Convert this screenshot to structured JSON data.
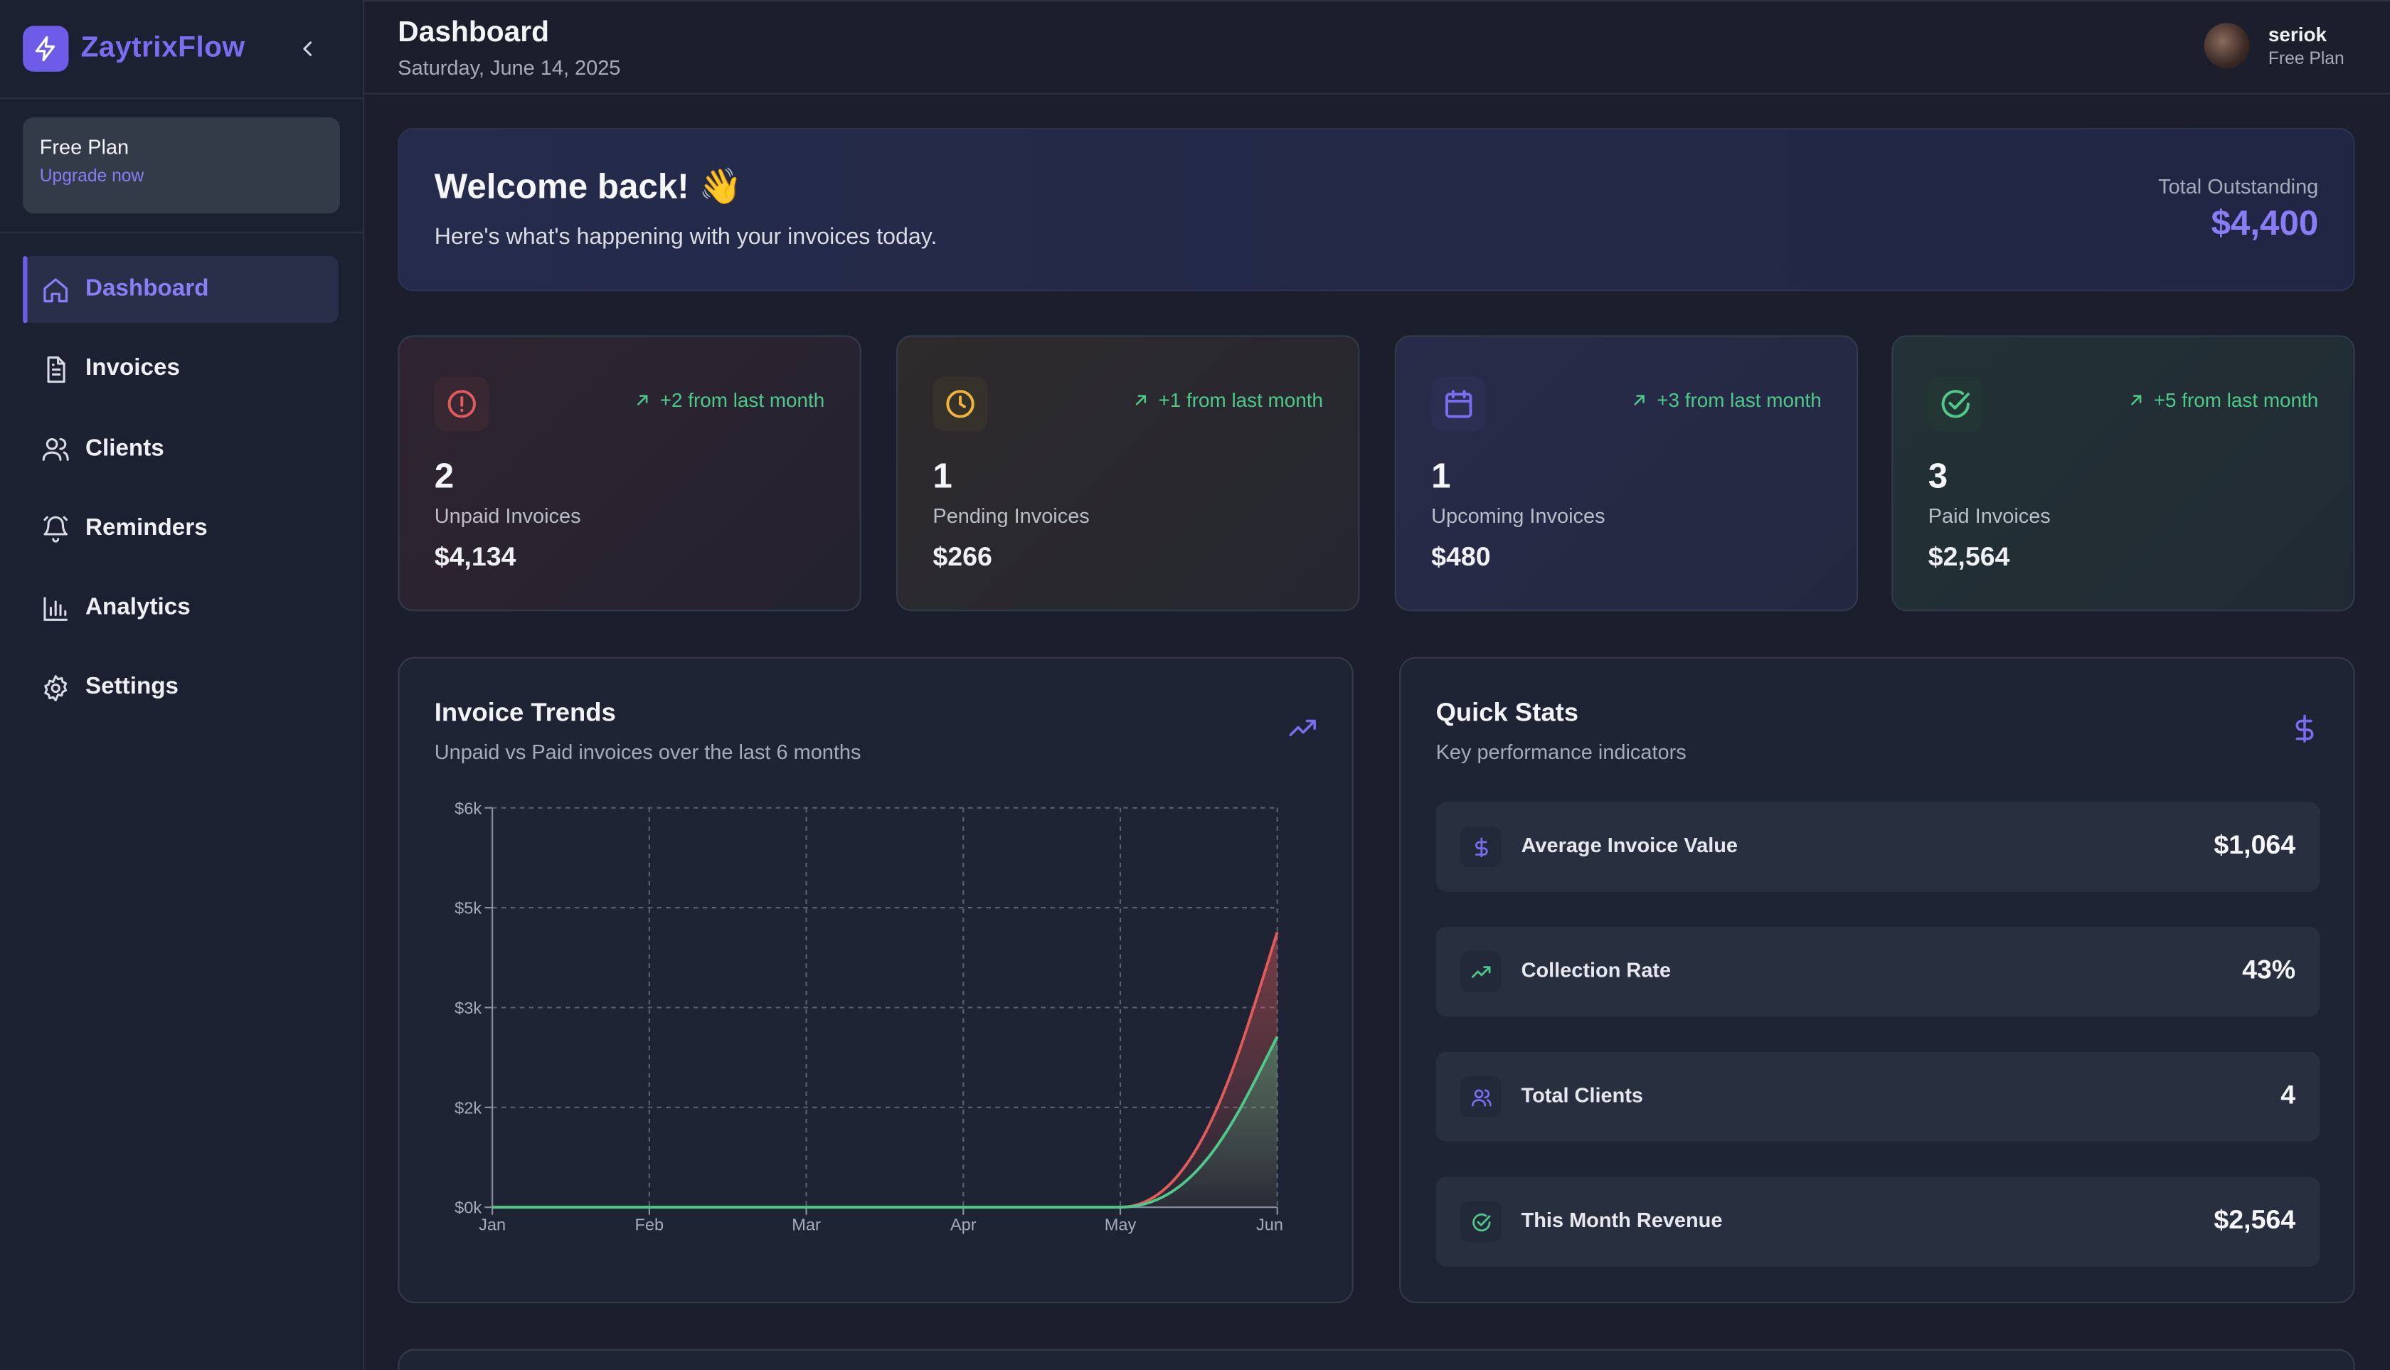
{
  "brand": {
    "name": "ZaytrixFlow"
  },
  "plan": {
    "title": "Free Plan",
    "link": "Upgrade now"
  },
  "nav": [
    {
      "label": "Dashboard",
      "icon": "home-icon",
      "active": true
    },
    {
      "label": "Invoices",
      "icon": "file-text-icon"
    },
    {
      "label": "Clients",
      "icon": "users-icon"
    },
    {
      "label": "Reminders",
      "icon": "bell-icon"
    },
    {
      "label": "Analytics",
      "icon": "bar-chart-icon"
    },
    {
      "label": "Settings",
      "icon": "gear-icon"
    }
  ],
  "header": {
    "title": "Dashboard",
    "date": "Saturday, June 14, 2025"
  },
  "user": {
    "name": "seriok",
    "plan": "Free Plan"
  },
  "welcome": {
    "title": "Welcome back! 👋",
    "subtitle": "Here's what's happening with your invoices today.",
    "outstanding_label": "Total Outstanding",
    "outstanding_value": "$4,400"
  },
  "stats": [
    {
      "count": "2",
      "label": "Unpaid Invoices",
      "amount": "$4,134",
      "trend": "+2 from last month",
      "icon": "alert-circle-icon",
      "color": "#e25b5b"
    },
    {
      "count": "1",
      "label": "Pending Invoices",
      "amount": "$266",
      "trend": "+1 from last month",
      "icon": "clock-icon",
      "color": "#f0b43c"
    },
    {
      "count": "1",
      "label": "Upcoming Invoices",
      "amount": "$480",
      "trend": "+3 from last month",
      "icon": "calendar-icon",
      "color": "#7b6cf0"
    },
    {
      "count": "3",
      "label": "Paid Invoices",
      "amount": "$2,564",
      "trend": "+5 from last month",
      "icon": "check-circle-icon",
      "color": "#4ec98a"
    }
  ],
  "trends": {
    "title": "Invoice Trends",
    "subtitle": "Unpaid vs Paid invoices over the last 6 months"
  },
  "chart_data": {
    "type": "area",
    "categories": [
      "Jan",
      "Feb",
      "Mar",
      "Apr",
      "May",
      "Jun"
    ],
    "series": [
      {
        "values": [
          0,
          0,
          0,
          0,
          0,
          4134
        ],
        "color": "#e25b5b"
      },
      {
        "values": [
          0,
          0,
          0,
          0,
          0,
          2564
        ],
        "color": "#4ec98a"
      }
    ],
    "yticks": [
      "$0k",
      "$2k",
      "$3k",
      "$5k",
      "$6k"
    ],
    "ytick_values": [
      0,
      1500,
      3000,
      4500,
      6000
    ],
    "ylim": [
      0,
      6000
    ],
    "grid": true
  },
  "quick_stats": {
    "title": "Quick Stats",
    "subtitle": "Key performance indicators",
    "items": [
      {
        "label": "Average Invoice Value",
        "value": "$1,064",
        "icon": "dollar-icon",
        "color": "#7b6cf0"
      },
      {
        "label": "Collection Rate",
        "value": "43%",
        "icon": "trending-up-icon",
        "color": "#4ec98a"
      },
      {
        "label": "Total Clients",
        "value": "4",
        "icon": "users-icon",
        "color": "#7b6cf0"
      },
      {
        "label": "This Month Revenue",
        "value": "$2,564",
        "icon": "check-circle-icon",
        "color": "#4ec98a"
      }
    ]
  }
}
